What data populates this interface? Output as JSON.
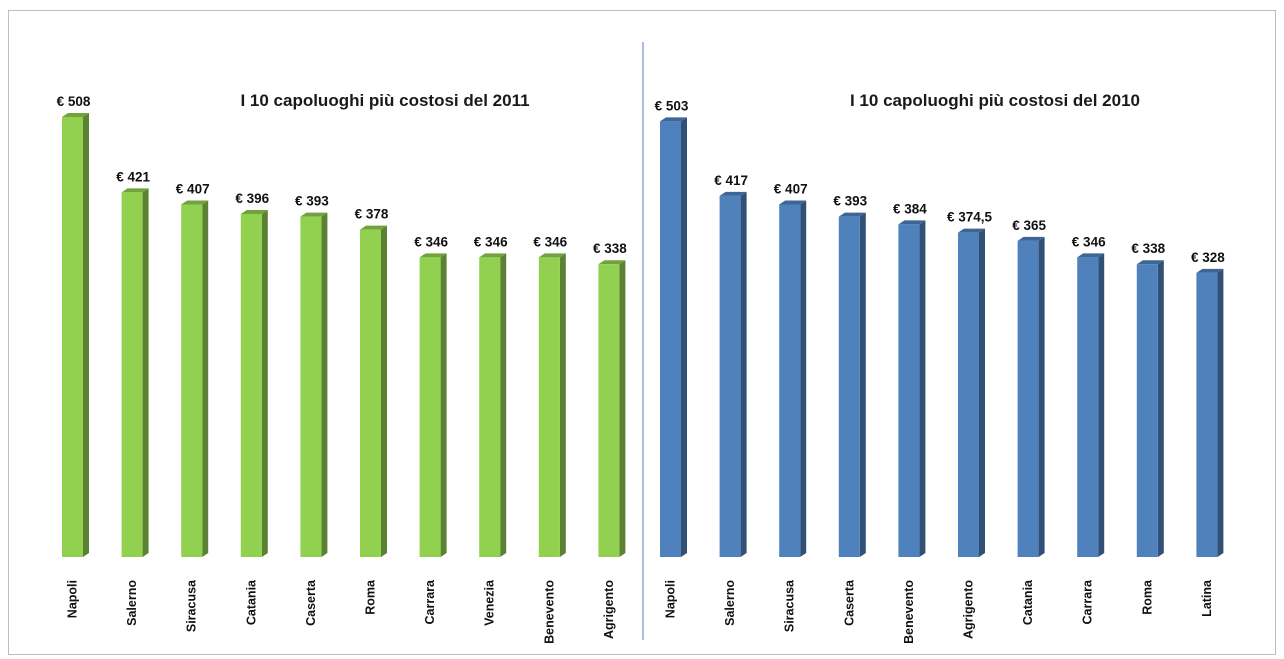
{
  "chart_data": [
    {
      "type": "bar",
      "title": "I 10 capoluoghi più costosi del 2011",
      "categories": [
        "Napoli",
        "Salerno",
        "Siracusa",
        "Catania",
        "Caserta",
        "Roma",
        "Carrara",
        "Venezia",
        "Benevento",
        "Agrigento"
      ],
      "values": [
        508,
        421,
        407,
        396,
        393,
        378,
        346,
        346,
        346,
        338
      ],
      "value_labels": [
        "€ 508",
        "€ 421",
        "€ 407",
        "€ 396",
        "€ 393",
        "€ 378",
        "€ 346",
        "€ 346",
        "€ 346",
        "€ 338"
      ],
      "xlabel": "",
      "ylabel": "",
      "ylim": [
        0,
        508
      ],
      "grid": false,
      "color": "#92d050"
    },
    {
      "type": "bar",
      "title": "I 10 capoluoghi più costosi del 2010",
      "categories": [
        "Napoli",
        "Salerno",
        "Siracusa",
        "Caserta",
        "Benevento",
        "Agrigento",
        "Catania",
        "Carrara",
        "Roma",
        "Latina"
      ],
      "values": [
        503,
        417,
        407,
        393,
        384,
        374.5,
        365,
        346,
        338,
        328
      ],
      "value_labels": [
        "€ 503",
        "€ 417",
        "€ 407",
        "€ 393",
        "€ 384",
        "€ 374,5",
        "€ 365",
        "€ 346",
        "€ 338",
        "€ 328"
      ],
      "xlabel": "",
      "ylabel": "",
      "ylim": [
        0,
        508
      ],
      "grid": false,
      "color": "#4f81bd"
    }
  ]
}
